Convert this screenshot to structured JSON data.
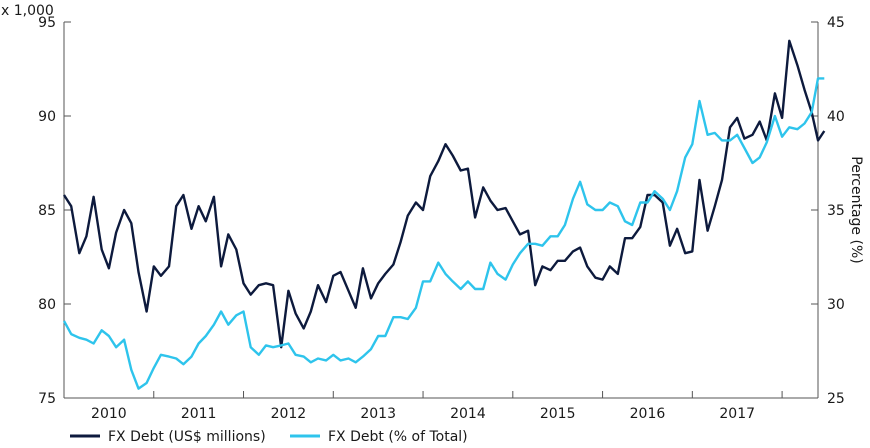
{
  "chart_data": {
    "type": "line",
    "multiplier_label": "x 1,000",
    "y_left": {
      "min": 75,
      "max": 95,
      "ticks": [
        75,
        80,
        85,
        90,
        95
      ]
    },
    "y_right": {
      "label": "Percentage (%)",
      "min": 25,
      "max": 45,
      "ticks": [
        25,
        30,
        35,
        40,
        45
      ]
    },
    "x": {
      "start": 2009.5,
      "end": 2017.9,
      "year_ticks": [
        2010,
        2011,
        2012,
        2013,
        2014,
        2015,
        2016,
        2017
      ]
    },
    "legend_position": "bottom-left",
    "series": [
      {
        "name": "FX Debt (US$ millions)",
        "axis": "left",
        "color": "#0d1a3d",
        "points": [
          [
            2009.5,
            85.8
          ],
          [
            2009.58,
            85.2
          ],
          [
            2009.67,
            82.7
          ],
          [
            2009.75,
            83.6
          ],
          [
            2009.83,
            85.7
          ],
          [
            2009.92,
            82.9
          ],
          [
            2010.0,
            81.9
          ],
          [
            2010.08,
            83.8
          ],
          [
            2010.17,
            85.0
          ],
          [
            2010.25,
            84.3
          ],
          [
            2010.33,
            81.7
          ],
          [
            2010.42,
            79.6
          ],
          [
            2010.5,
            82.0
          ],
          [
            2010.58,
            81.5
          ],
          [
            2010.67,
            82.0
          ],
          [
            2010.75,
            85.2
          ],
          [
            2010.83,
            85.8
          ],
          [
            2010.92,
            84.0
          ],
          [
            2011.0,
            85.2
          ],
          [
            2011.08,
            84.4
          ],
          [
            2011.17,
            85.7
          ],
          [
            2011.25,
            82.0
          ],
          [
            2011.33,
            83.7
          ],
          [
            2011.42,
            82.9
          ],
          [
            2011.5,
            81.1
          ],
          [
            2011.58,
            80.5
          ],
          [
            2011.67,
            81.0
          ],
          [
            2011.75,
            81.1
          ],
          [
            2011.83,
            81.0
          ],
          [
            2011.92,
            77.7
          ],
          [
            2012.0,
            80.7
          ],
          [
            2012.08,
            79.5
          ],
          [
            2012.17,
            78.7
          ],
          [
            2012.25,
            79.6
          ],
          [
            2012.33,
            81.0
          ],
          [
            2012.42,
            80.1
          ],
          [
            2012.5,
            81.5
          ],
          [
            2012.58,
            81.7
          ],
          [
            2012.67,
            80.7
          ],
          [
            2012.75,
            79.8
          ],
          [
            2012.83,
            81.9
          ],
          [
            2012.92,
            80.3
          ],
          [
            2013.0,
            81.1
          ],
          [
            2013.08,
            81.6
          ],
          [
            2013.17,
            82.1
          ],
          [
            2013.25,
            83.3
          ],
          [
            2013.33,
            84.7
          ],
          [
            2013.42,
            85.4
          ],
          [
            2013.5,
            85.0
          ],
          [
            2013.58,
            86.8
          ],
          [
            2013.67,
            87.6
          ],
          [
            2013.75,
            88.5
          ],
          [
            2013.83,
            87.9
          ],
          [
            2013.92,
            87.1
          ],
          [
            2014.0,
            87.2
          ],
          [
            2014.08,
            84.6
          ],
          [
            2014.17,
            86.2
          ],
          [
            2014.25,
            85.5
          ],
          [
            2014.33,
            85.0
          ],
          [
            2014.42,
            85.1
          ],
          [
            2014.5,
            84.4
          ],
          [
            2014.58,
            83.7
          ],
          [
            2014.67,
            83.9
          ],
          [
            2014.75,
            81.0
          ],
          [
            2014.83,
            82.0
          ],
          [
            2014.92,
            81.8
          ],
          [
            2015.0,
            82.3
          ],
          [
            2015.08,
            82.3
          ],
          [
            2015.17,
            82.8
          ],
          [
            2015.25,
            83.0
          ],
          [
            2015.33,
            82.0
          ],
          [
            2015.42,
            81.4
          ],
          [
            2015.5,
            81.3
          ],
          [
            2015.58,
            82.0
          ],
          [
            2015.67,
            81.6
          ],
          [
            2015.75,
            83.5
          ],
          [
            2015.83,
            83.5
          ],
          [
            2015.92,
            84.1
          ],
          [
            2016.0,
            85.8
          ],
          [
            2016.08,
            85.8
          ],
          [
            2016.17,
            85.4
          ],
          [
            2016.25,
            83.1
          ],
          [
            2016.33,
            84.0
          ],
          [
            2016.42,
            82.7
          ],
          [
            2016.5,
            82.8
          ],
          [
            2016.58,
            86.6
          ],
          [
            2016.67,
            83.9
          ],
          [
            2016.75,
            85.2
          ],
          [
            2016.83,
            86.6
          ],
          [
            2016.92,
            89.4
          ],
          [
            2017.0,
            89.9
          ],
          [
            2017.08,
            88.8
          ],
          [
            2017.17,
            89.0
          ],
          [
            2017.25,
            89.7
          ],
          [
            2017.33,
            88.7
          ],
          [
            2017.42,
            91.2
          ],
          [
            2017.5,
            89.9
          ],
          [
            2017.58,
            94.0
          ],
          [
            2017.67,
            92.7
          ],
          [
            2017.75,
            91.4
          ],
          [
            2017.83,
            90.2
          ],
          [
            2017.9,
            88.7
          ],
          [
            2017.97,
            89.2
          ]
        ]
      },
      {
        "name": "FX Debt (% of Total)",
        "axis": "right",
        "color": "#2ec4ec",
        "points": [
          [
            2009.5,
            29.1
          ],
          [
            2009.58,
            28.4
          ],
          [
            2009.67,
            28.2
          ],
          [
            2009.75,
            28.1
          ],
          [
            2009.83,
            27.9
          ],
          [
            2009.92,
            28.6
          ],
          [
            2010.0,
            28.3
          ],
          [
            2010.08,
            27.7
          ],
          [
            2010.17,
            28.1
          ],
          [
            2010.25,
            26.5
          ],
          [
            2010.33,
            25.5
          ],
          [
            2010.42,
            25.8
          ],
          [
            2010.5,
            26.6
          ],
          [
            2010.58,
            27.3
          ],
          [
            2010.67,
            27.2
          ],
          [
            2010.75,
            27.1
          ],
          [
            2010.83,
            26.8
          ],
          [
            2010.92,
            27.2
          ],
          [
            2011.0,
            27.9
          ],
          [
            2011.08,
            28.3
          ],
          [
            2011.17,
            28.9
          ],
          [
            2011.25,
            29.6
          ],
          [
            2011.33,
            28.9
          ],
          [
            2011.42,
            29.4
          ],
          [
            2011.5,
            29.6
          ],
          [
            2011.58,
            27.7
          ],
          [
            2011.67,
            27.3
          ],
          [
            2011.75,
            27.8
          ],
          [
            2011.83,
            27.7
          ],
          [
            2011.92,
            27.8
          ],
          [
            2012.0,
            27.9
          ],
          [
            2012.08,
            27.3
          ],
          [
            2012.17,
            27.2
          ],
          [
            2012.25,
            26.9
          ],
          [
            2012.33,
            27.1
          ],
          [
            2012.42,
            27.0
          ],
          [
            2012.5,
            27.3
          ],
          [
            2012.58,
            27.0
          ],
          [
            2012.67,
            27.1
          ],
          [
            2012.75,
            26.9
          ],
          [
            2012.83,
            27.2
          ],
          [
            2012.92,
            27.6
          ],
          [
            2013.0,
            28.3
          ],
          [
            2013.08,
            28.3
          ],
          [
            2013.17,
            29.3
          ],
          [
            2013.25,
            29.3
          ],
          [
            2013.33,
            29.2
          ],
          [
            2013.42,
            29.8
          ],
          [
            2013.5,
            31.2
          ],
          [
            2013.58,
            31.2
          ],
          [
            2013.67,
            32.2
          ],
          [
            2013.75,
            31.6
          ],
          [
            2013.83,
            31.2
          ],
          [
            2013.92,
            30.8
          ],
          [
            2014.0,
            31.2
          ],
          [
            2014.08,
            30.8
          ],
          [
            2014.17,
            30.8
          ],
          [
            2014.25,
            32.2
          ],
          [
            2014.33,
            31.6
          ],
          [
            2014.42,
            31.3
          ],
          [
            2014.5,
            32.1
          ],
          [
            2014.58,
            32.7
          ],
          [
            2014.67,
            33.2
          ],
          [
            2014.75,
            33.2
          ],
          [
            2014.83,
            33.1
          ],
          [
            2014.92,
            33.6
          ],
          [
            2015.0,
            33.6
          ],
          [
            2015.08,
            34.2
          ],
          [
            2015.17,
            35.6
          ],
          [
            2015.25,
            36.5
          ],
          [
            2015.33,
            35.3
          ],
          [
            2015.42,
            35.0
          ],
          [
            2015.5,
            35.0
          ],
          [
            2015.58,
            35.4
          ],
          [
            2015.67,
            35.2
          ],
          [
            2015.75,
            34.4
          ],
          [
            2015.83,
            34.2
          ],
          [
            2015.92,
            35.4
          ],
          [
            2016.0,
            35.4
          ],
          [
            2016.08,
            36.0
          ],
          [
            2016.17,
            35.6
          ],
          [
            2016.25,
            35.0
          ],
          [
            2016.33,
            36.0
          ],
          [
            2016.42,
            37.8
          ],
          [
            2016.5,
            38.5
          ],
          [
            2016.58,
            40.8
          ],
          [
            2016.67,
            39.0
          ],
          [
            2016.75,
            39.1
          ],
          [
            2016.83,
            38.7
          ],
          [
            2016.92,
            38.7
          ],
          [
            2017.0,
            39.0
          ],
          [
            2017.08,
            38.3
          ],
          [
            2017.17,
            37.5
          ],
          [
            2017.25,
            37.8
          ],
          [
            2017.33,
            38.6
          ],
          [
            2017.42,
            40.0
          ],
          [
            2017.5,
            38.9
          ],
          [
            2017.58,
            39.4
          ],
          [
            2017.67,
            39.3
          ],
          [
            2017.75,
            39.6
          ],
          [
            2017.83,
            40.2
          ],
          [
            2017.9,
            42.0
          ],
          [
            2017.97,
            42.0
          ]
        ]
      }
    ]
  }
}
